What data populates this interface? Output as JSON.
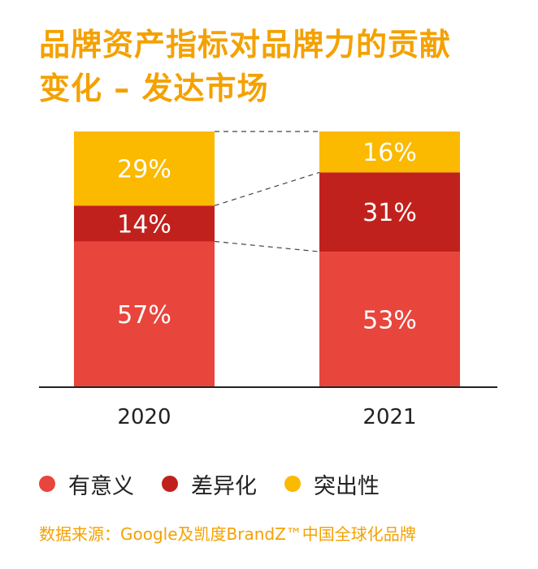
{
  "title": {
    "line1": "品牌资产指标对品牌力的贡献",
    "line2": "变化 – 发达市场"
  },
  "colors": {
    "title": "#f4a100",
    "meaningful": "#e8453c",
    "different": "#c1211d",
    "salient": "#fbb900"
  },
  "chart_data": {
    "type": "bar",
    "stacked": true,
    "categories": [
      "2020",
      "2021"
    ],
    "series": [
      {
        "name": "有意义",
        "values": [
          57,
          53
        ],
        "labels": [
          "57%",
          "53%"
        ],
        "color": "#e8453c"
      },
      {
        "name": "差异化",
        "values": [
          14,
          31
        ],
        "labels": [
          "14%",
          "31%"
        ],
        "color": "#c1211d"
      },
      {
        "name": "突出性",
        "values": [
          29,
          16
        ],
        "labels": [
          "29%",
          "16%"
        ],
        "color": "#fbb900"
      }
    ],
    "ylim": [
      0,
      100
    ],
    "grid": false,
    "connectors": "dashed",
    "legend_position": "bottom"
  },
  "legend": [
    {
      "label": "有意义",
      "color": "#e8453c"
    },
    {
      "label": "差异化",
      "color": "#c1211d"
    },
    {
      "label": "突出性",
      "color": "#fbb900"
    }
  ],
  "source": "数据来源：Google及凯度BrandZ™中国全球化品牌"
}
